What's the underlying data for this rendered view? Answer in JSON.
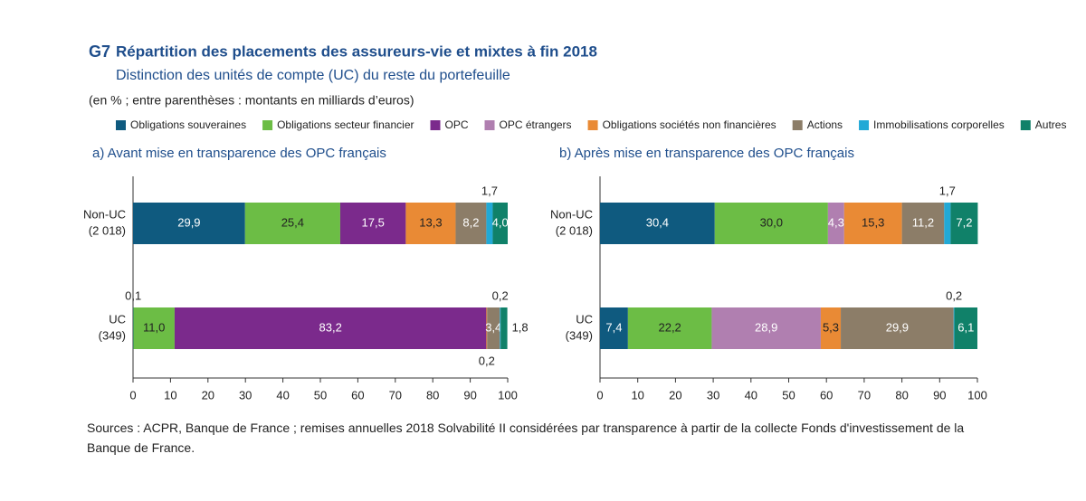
{
  "header": {
    "code": "G7",
    "title": "Répartition des placements des assureurs-vie et mixtes à fin 2018",
    "subtitle": "Distinction des unités de compte (UC) du reste du portefeuille",
    "unit": "(en % ; entre parenthèses : montants en milliards d’euros)"
  },
  "legend": [
    {
      "name": "Obligations souveraines",
      "color": "#0f5a7f"
    },
    {
      "name": "Obligations secteur financier",
      "color": "#6cbd45"
    },
    {
      "name": "OPC",
      "color": "#7b2a8c"
    },
    {
      "name": "OPC étrangers",
      "color": "#b07fb0"
    },
    {
      "name": "Obligations sociétés non financières",
      "color": "#e98a35"
    },
    {
      "name": "Actions",
      "color": "#8c7d68"
    },
    {
      "name": "Immobilisations corporelles",
      "color": "#22a9d6"
    },
    {
      "name": "Autres",
      "color": "#108169"
    }
  ],
  "chart_data": [
    {
      "type": "bar",
      "orientation": "horizontal",
      "stacked": true,
      "title": "a)  Avant mise en transparence des OPC français",
      "categories": [
        "Non-UC",
        "UC"
      ],
      "category_amounts": [
        "(2 018)",
        "(349)"
      ],
      "series": [
        {
          "values": [
            29.9,
            0.1
          ],
          "value_labels": [
            "29,9",
            "0,1"
          ]
        },
        {
          "values": [
            25.4,
            11.0
          ],
          "value_labels": [
            "25,4",
            "11,0"
          ]
        },
        {
          "values": [
            17.5,
            83.2
          ],
          "value_labels": [
            "17,5",
            "83,2"
          ]
        },
        {
          "values": [
            null,
            null
          ],
          "value_labels": [
            null,
            null
          ]
        },
        {
          "values": [
            13.3,
            0.2
          ],
          "value_labels": [
            "13,3",
            "0,2"
          ]
        },
        {
          "values": [
            8.2,
            3.4
          ],
          "value_labels": [
            "8,2",
            "3,4"
          ]
        },
        {
          "values": [
            1.7,
            0.2
          ],
          "value_labels": [
            "1,7",
            "0,2"
          ]
        },
        {
          "values": [
            4.0,
            1.8
          ],
          "value_labels": [
            "4,0",
            "1,8"
          ]
        }
      ],
      "xlim": [
        0,
        100
      ],
      "xticks": [
        0,
        10,
        20,
        30,
        40,
        50,
        60,
        70,
        80,
        90,
        100
      ]
    },
    {
      "type": "bar",
      "orientation": "horizontal",
      "stacked": true,
      "title": "b)  Après mise en transparence des OPC français",
      "categories": [
        "Non-UC",
        "UC"
      ],
      "category_amounts": [
        "(2 018)",
        "(349)"
      ],
      "series": [
        {
          "values": [
            30.4,
            7.4
          ],
          "value_labels": [
            "30,4",
            "7,4"
          ]
        },
        {
          "values": [
            30.0,
            22.2
          ],
          "value_labels": [
            "30,0",
            "22,2"
          ]
        },
        {
          "values": [
            null,
            null
          ],
          "value_labels": [
            null,
            null
          ]
        },
        {
          "values": [
            4.3,
            28.9
          ],
          "value_labels": [
            "4,3",
            "28,9"
          ]
        },
        {
          "values": [
            15.3,
            5.3
          ],
          "value_labels": [
            "15,3",
            "5,3"
          ]
        },
        {
          "values": [
            11.2,
            29.9
          ],
          "value_labels": [
            "11,2",
            "29,9"
          ]
        },
        {
          "values": [
            1.7,
            0.2
          ],
          "value_labels": [
            "1,7",
            "0,2"
          ]
        },
        {
          "values": [
            7.2,
            6.1
          ],
          "value_labels": [
            "7,2",
            "6,1"
          ]
        }
      ],
      "xlim": [
        0,
        100
      ],
      "xticks": [
        0,
        10,
        20,
        30,
        40,
        50,
        60,
        70,
        80,
        90,
        100
      ]
    }
  ],
  "source": "Sources : ACPR, Banque de France ; remises annuelles 2018 Solvabilité II considérées par transparence à partir de la collecte Fonds d'investissement de la Banque de France."
}
